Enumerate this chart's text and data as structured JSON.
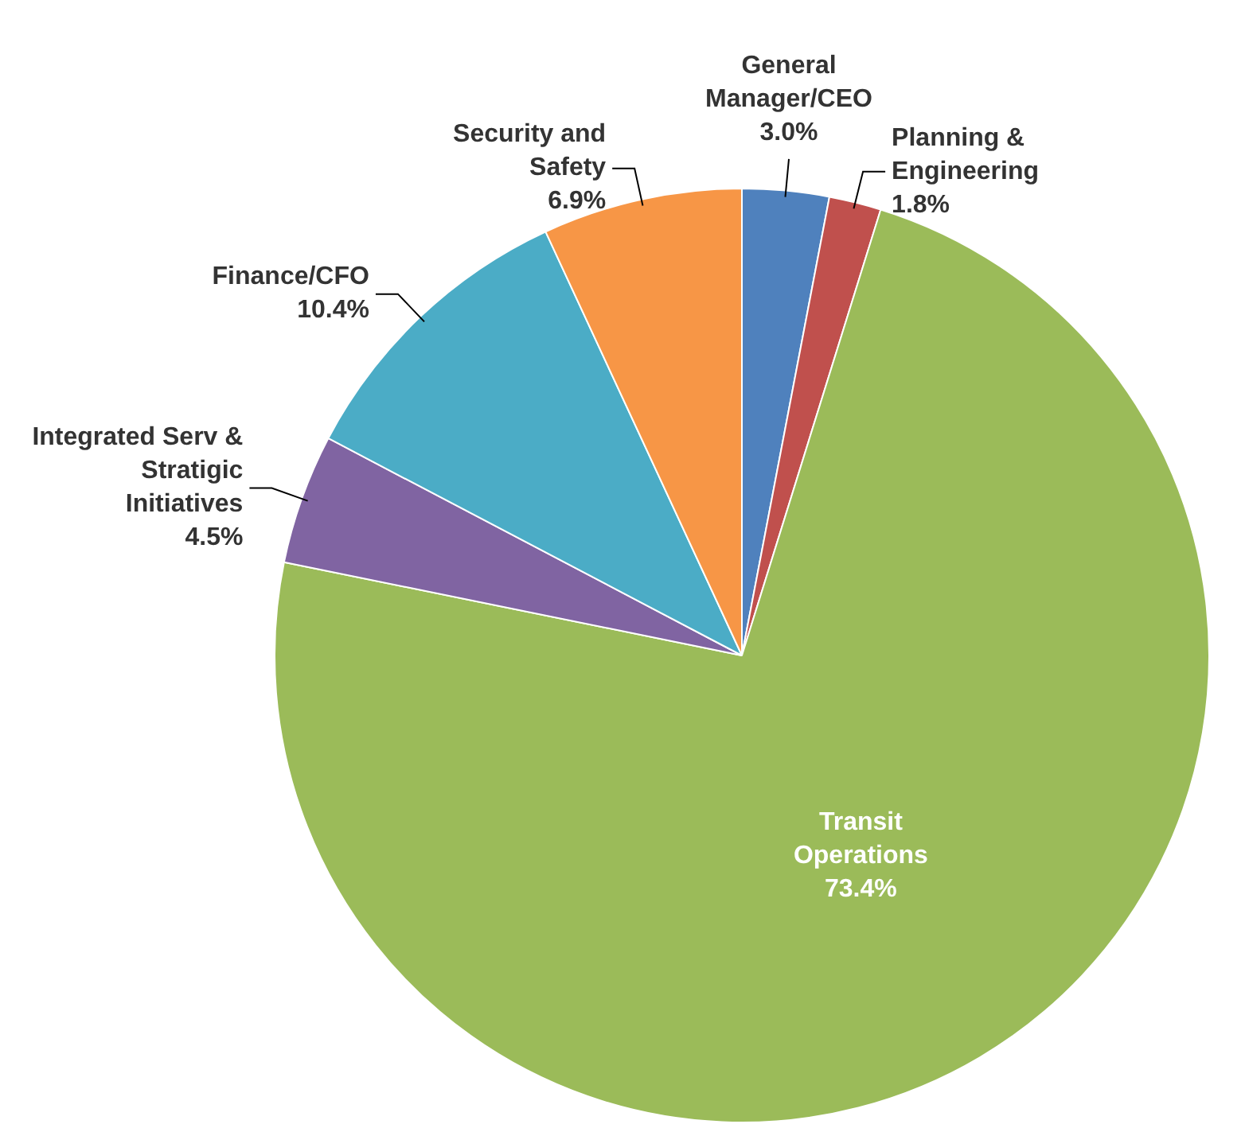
{
  "chart_data": {
    "type": "pie",
    "categories": [
      "General Manager/CEO",
      "Planning & Engineering",
      "Transit Operations",
      "Integrated Serv & Stratigic Initiatives",
      "Finance/CFO",
      "Security and Safety"
    ],
    "values": [
      3.0,
      1.8,
      73.4,
      4.5,
      10.4,
      6.9
    ],
    "value_labels": [
      "3.0%",
      "1.8%",
      "73.4%",
      "4.5%",
      "10.4%",
      "6.9%"
    ],
    "colors": [
      "#4f81bd",
      "#c0504d",
      "#9bbb59",
      "#8064a2",
      "#4bacc6",
      "#f79646"
    ],
    "legend": false
  }
}
